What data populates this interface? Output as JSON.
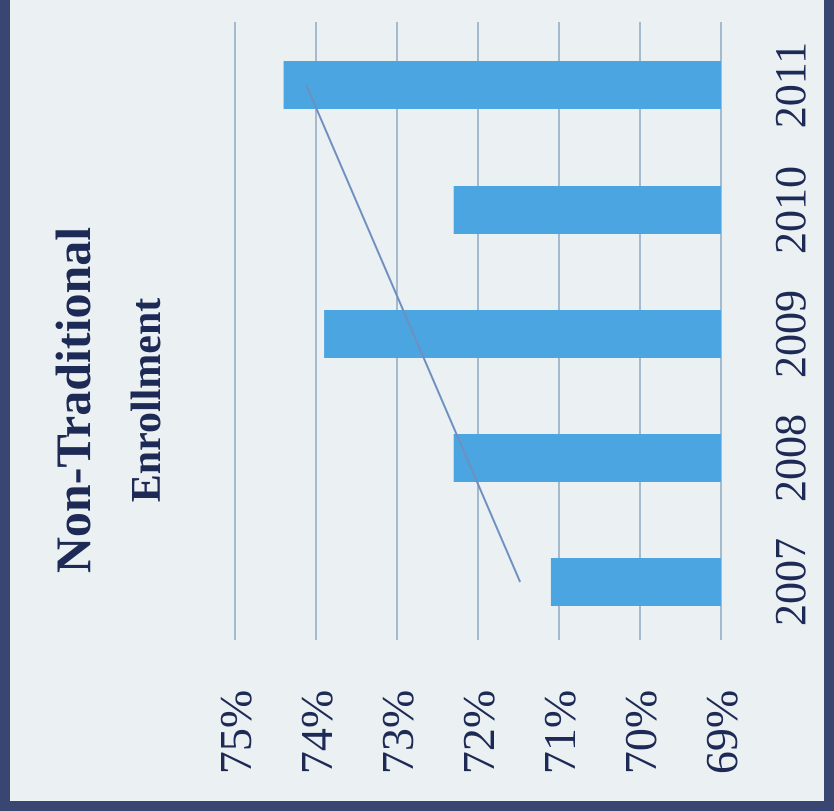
{
  "chart_data": {
    "type": "bar",
    "orientation": "rotated",
    "title_lines": [
      "Non-Traditional",
      "Enrollment"
    ],
    "categories": [
      "2007",
      "2008",
      "2009",
      "2010",
      "2011"
    ],
    "values": [
      71.1,
      72.3,
      73.9,
      72.3,
      74.4
    ],
    "value_format": "percent",
    "yticks": [
      "69%",
      "70%",
      "71%",
      "72%",
      "73%",
      "74%",
      "75%"
    ],
    "ylim": [
      69,
      75
    ],
    "grid": true,
    "trendline": true,
    "legend": "none",
    "colors": {
      "bar": "#4aa5e0",
      "grid": "#8fa7c2",
      "trendline": "#6f8fc0",
      "text": "#1e2a56",
      "background": "#ebf1f3",
      "frame": "#3a4672"
    }
  }
}
